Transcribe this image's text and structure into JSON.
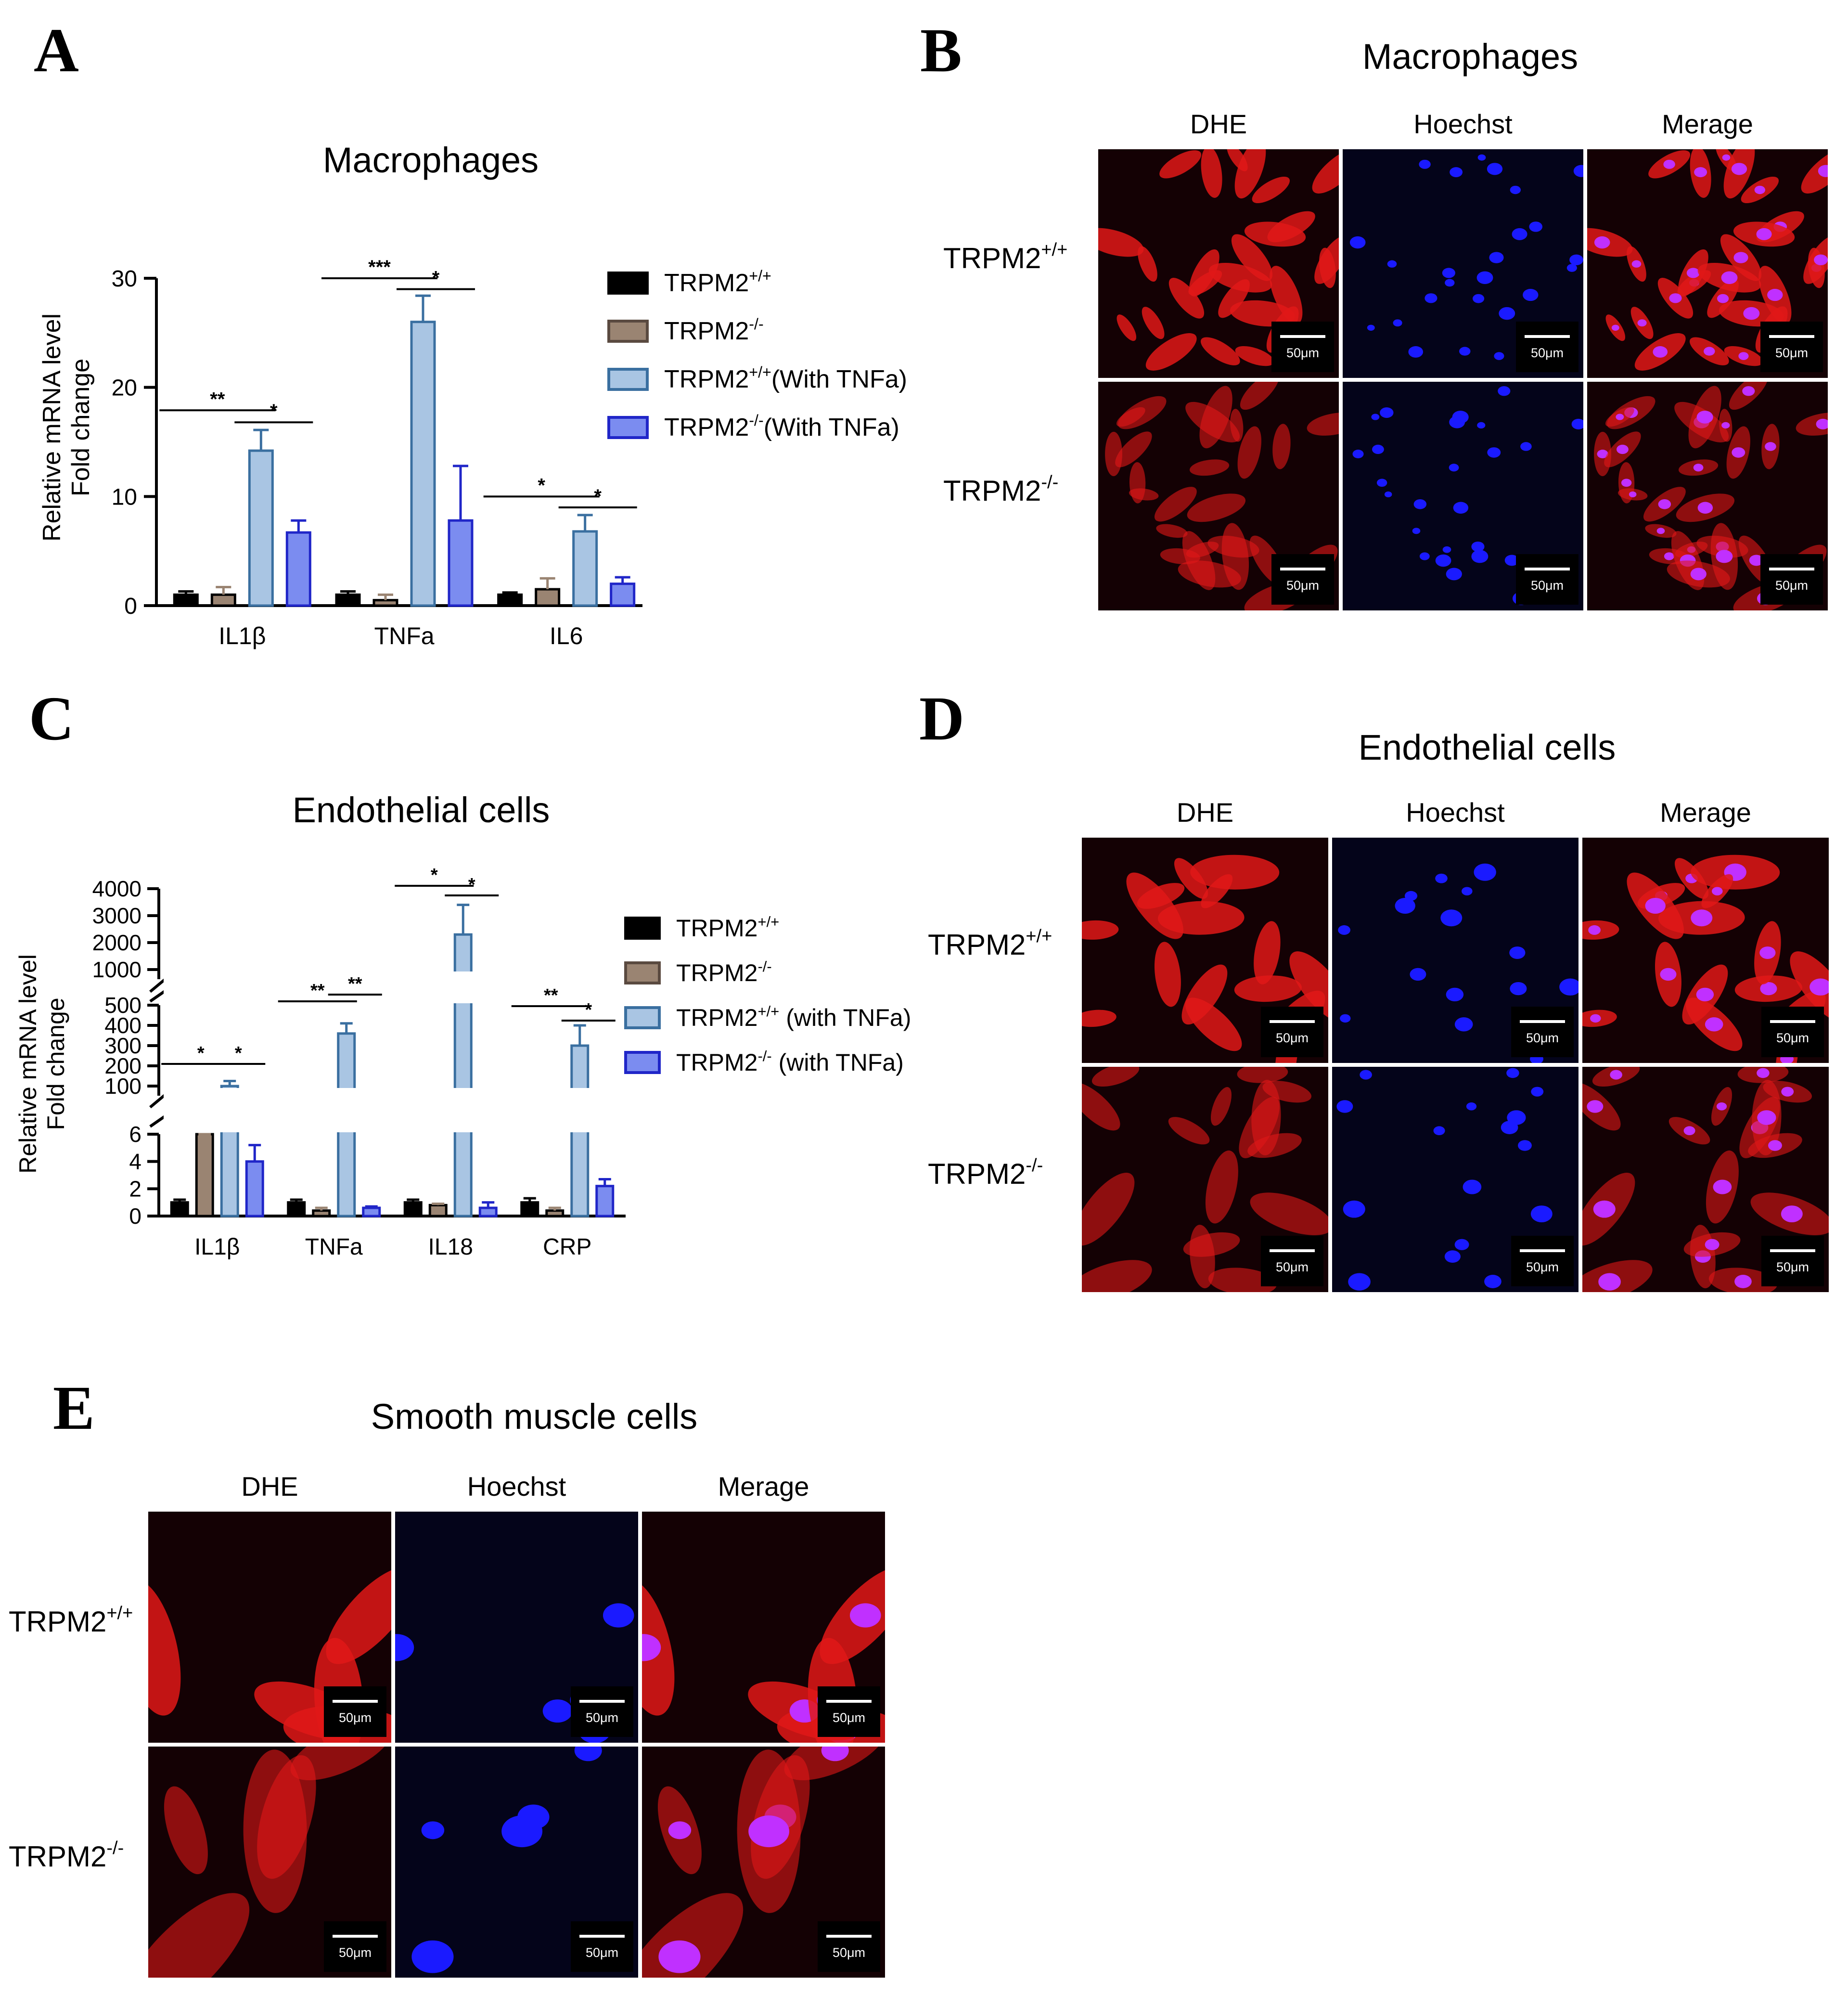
{
  "panels": {
    "A": {
      "letter": "A",
      "title": "Macrophages"
    },
    "B": {
      "letter": "B",
      "title": "Macrophages"
    },
    "C": {
      "letter": "C",
      "title": "Endothelial cells"
    },
    "D": {
      "letter": "D",
      "title": "Endothelial cells"
    },
    "E": {
      "letter": "E",
      "title": "Smooth muscle cells"
    }
  },
  "micro_columns": [
    "DHE",
    "Hoechst",
    "Merage"
  ],
  "micro_rows": [
    {
      "base": "TRPM2",
      "sup": "+/+"
    },
    {
      "base": "TRPM2",
      "sup": "-/-"
    }
  ],
  "scale_bar": "50μm",
  "colors": {
    "dhe": "#e01818",
    "hoechst": "#1a1aff",
    "merge_nuc": "#c030ff"
  },
  "chart_data": [
    {
      "type": "bar",
      "title": "Macrophages",
      "ylabel": "Relative mRNA level Fold change",
      "ylim": [
        0,
        30
      ],
      "yticks": [
        0,
        10,
        20,
        30
      ],
      "categories": [
        "IL1β",
        "TNFa",
        "IL6"
      ],
      "series": [
        {
          "name": "TRPM2+/+",
          "label_base": "TRPM2",
          "label_sup": "+/+",
          "label_suffix": "",
          "color": "#000000",
          "values": [
            1.0,
            1.0,
            1.0
          ],
          "errors": [
            0.3,
            0.3,
            0.2
          ]
        },
        {
          "name": "TRPM2-/-",
          "label_base": "TRPM2",
          "label_sup": "-/-",
          "label_suffix": "",
          "color": "#9a8472",
          "values": [
            1.0,
            0.5,
            1.5
          ],
          "errors": [
            0.7,
            0.5,
            1.0
          ]
        },
        {
          "name": "TRPM2+/+(With TNFa)",
          "label_base": "TRPM2",
          "label_sup": "+/+",
          "label_suffix": "(With TNFa)",
          "color": "#a9c5e3",
          "edge": "#3a6fa0",
          "values": [
            14.2,
            26.0,
            6.8
          ],
          "errors": [
            1.9,
            2.4,
            1.5
          ]
        },
        {
          "name": "TRPM2-/-(With TNFa)",
          "label_base": "TRPM2",
          "label_sup": "-/-",
          "label_suffix": "(With TNFa)",
          "color": "#7b8cf0",
          "edge": "#2026c8",
          "values": [
            6.7,
            7.8,
            2.0
          ],
          "errors": [
            1.1,
            5.0,
            0.6
          ]
        }
      ],
      "significance": [
        "**",
        "*",
        "***",
        "*",
        "*",
        "*"
      ]
    },
    {
      "type": "bar",
      "title": "Endothelial cells",
      "ylabel": "Relative mRNA level Fold change",
      "ylim": [
        0,
        4000
      ],
      "axis_segments": [
        [
          0,
          6
        ],
        [
          100,
          500
        ],
        [
          1000,
          4000
        ]
      ],
      "yticks": [
        0,
        2,
        4,
        6,
        100,
        200,
        300,
        400,
        500,
        1000,
        2000,
        3000,
        4000
      ],
      "categories": [
        "IL1β",
        "TNFa",
        "IL18",
        "CRP"
      ],
      "series": [
        {
          "name": "TRPM2+/+",
          "label_base": "TRPM2",
          "label_sup": "+/+",
          "label_suffix": "",
          "color": "#000000",
          "values": [
            1.0,
            1.0,
            1.0,
            1.0
          ],
          "errors": [
            0.2,
            0.2,
            0.2,
            0.3
          ]
        },
        {
          "name": "TRPM2-/-",
          "label_base": "TRPM2",
          "label_sup": "-/-",
          "label_suffix": "",
          "color": "#9a8472",
          "values": [
            20,
            0.4,
            0.8,
            0.4
          ],
          "errors": [
            3,
            0.2,
            0.1,
            0.2
          ]
        },
        {
          "name": "TRPM2+/+ (with TNFa)",
          "label_base": "TRPM2",
          "label_sup": "+/+",
          "label_suffix": " (with TNFa)",
          "color": "#a9c5e3",
          "edge": "#3a6fa0",
          "values": [
            100,
            360,
            2300,
            300
          ],
          "errors": [
            25,
            50,
            1100,
            100
          ]
        },
        {
          "name": "TRPM2-/- (with TNFa)",
          "label_base": "TRPM2",
          "label_sup": "-/-",
          "label_suffix": " (with TNFa)",
          "color": "#7b8cf0",
          "edge": "#2026c8",
          "values": [
            4.0,
            0.6,
            0.6,
            2.2
          ],
          "errors": [
            1.2,
            0.1,
            0.4,
            0.5
          ]
        }
      ],
      "significance": [
        "*",
        "*",
        "**",
        "**",
        "*",
        "*",
        "**",
        "*"
      ]
    }
  ]
}
